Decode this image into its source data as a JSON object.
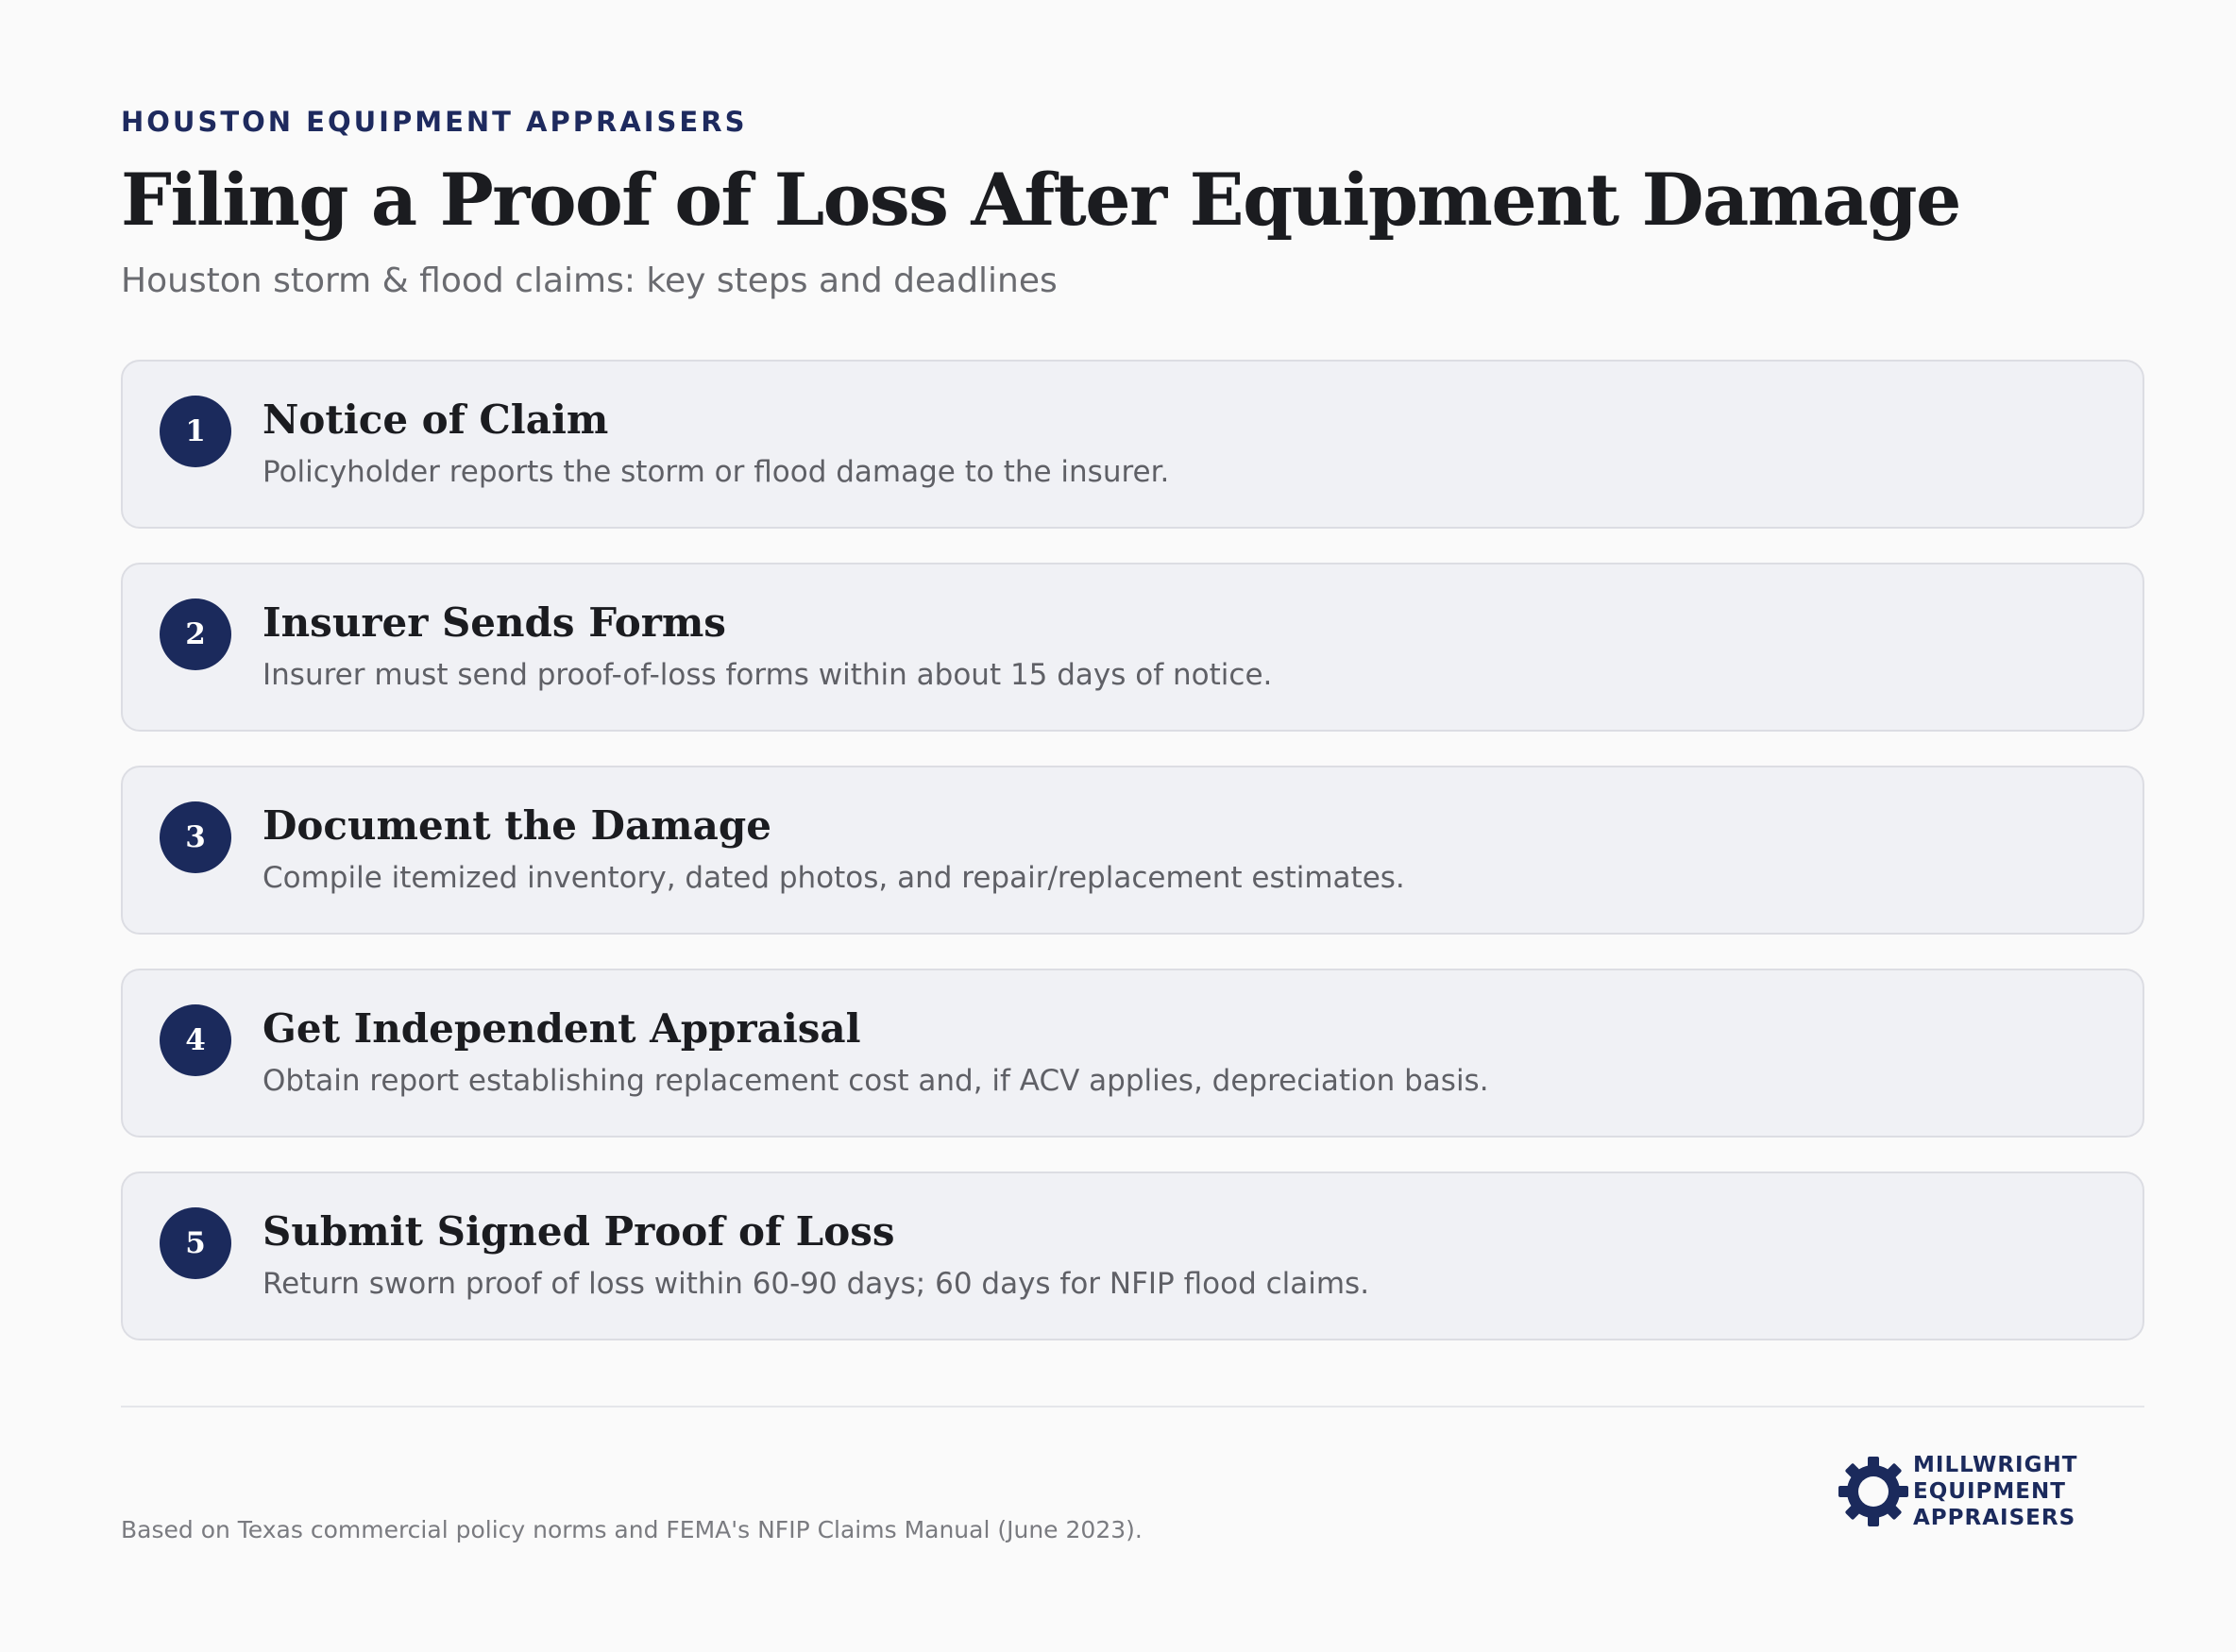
{
  "header": {
    "eyebrow": "HOUSTON EQUIPMENT APPRAISERS",
    "title": "Filing a Proof of Loss After Equipment Damage",
    "subtitle": "Houston storm & flood claims: key steps and deadlines"
  },
  "steps": [
    {
      "number": "1",
      "title": "Notice of Claim",
      "description": "Policyholder reports the storm or flood damage to the insurer."
    },
    {
      "number": "2",
      "title": "Insurer Sends Forms",
      "description": "Insurer must send proof-of-loss forms within about 15 days of notice."
    },
    {
      "number": "3",
      "title": "Document the Damage",
      "description": "Compile itemized inventory, dated photos, and repair/replacement estimates."
    },
    {
      "number": "4",
      "title": "Get Independent Appraisal",
      "description": "Obtain report establishing replacement cost and, if ACV applies, depreciation basis."
    },
    {
      "number": "5",
      "title": "Submit Signed Proof of Loss",
      "description": "Return sworn proof of loss within 60-90 days; 60 days for NFIP flood claims."
    }
  ],
  "footer": {
    "note": "Based on Texas commercial policy norms and FEMA's NFIP Claims Manual (June 2023).",
    "logo": {
      "icon": "gear-icon",
      "lines": [
        "MILLWRIGHT",
        "EQUIPMENT",
        "APPRAISERS"
      ]
    }
  },
  "colors": {
    "accent": "#1b2a5c",
    "background": "#fafafa",
    "card_background": "#f0f1f5",
    "card_border": "#dcdde3"
  }
}
